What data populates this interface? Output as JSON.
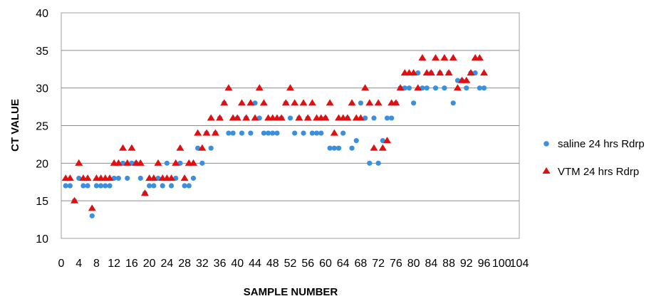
{
  "chart_data": {
    "type": "scatter",
    "title": "",
    "xlabel": "SAMPLE NUMBER",
    "ylabel": "CT VALUE",
    "xlim": [
      0,
      104
    ],
    "ylim": [
      10,
      40
    ],
    "xticks": [
      0,
      4,
      8,
      12,
      16,
      20,
      24,
      28,
      32,
      36,
      40,
      44,
      48,
      52,
      56,
      60,
      64,
      68,
      72,
      76,
      80,
      84,
      88,
      92,
      96,
      100,
      104
    ],
    "yticks": [
      10,
      15,
      20,
      25,
      30,
      35,
      40
    ],
    "grid": "horizontal",
    "legend_position": "right",
    "series": [
      {
        "name": "saline 24 hrs Rdrp",
        "marker": "circle",
        "color": "#3a8fde",
        "x": [
          1,
          2,
          3,
          4,
          5,
          6,
          7,
          8,
          9,
          10,
          11,
          12,
          13,
          14,
          15,
          16,
          17,
          18,
          19,
          20,
          21,
          22,
          23,
          24,
          25,
          26,
          27,
          28,
          29,
          30,
          31,
          32,
          33,
          34,
          35,
          36,
          37,
          38,
          39,
          40,
          41,
          42,
          43,
          44,
          45,
          46,
          47,
          48,
          49,
          50,
          51,
          52,
          53,
          54,
          55,
          56,
          57,
          58,
          59,
          60,
          61,
          62,
          63,
          64,
          65,
          66,
          67,
          68,
          69,
          70,
          71,
          72,
          73,
          74,
          75,
          76,
          77,
          78,
          79,
          80,
          81,
          82,
          83,
          84,
          85,
          86,
          87,
          88,
          89,
          90,
          91,
          92,
          93,
          94,
          95,
          96
        ],
        "y": [
          17,
          17,
          15,
          18,
          17,
          17,
          13,
          17,
          17,
          17,
          17,
          18,
          18,
          20,
          18,
          20,
          20,
          18,
          16,
          17,
          17,
          18,
          17,
          20,
          17,
          18,
          20,
          17,
          17,
          18,
          22,
          20,
          24,
          22,
          24,
          26,
          28,
          24,
          24,
          26,
          24,
          26,
          24,
          28,
          26,
          24,
          24,
          24,
          24,
          26,
          28,
          26,
          24,
          26,
          24,
          26,
          24,
          24,
          24,
          26,
          22,
          22,
          22,
          24,
          26,
          22,
          23,
          28,
          26,
          20,
          26,
          20,
          23,
          26,
          26,
          28,
          30,
          30,
          30,
          28,
          32,
          30,
          30,
          32,
          30,
          32,
          30,
          32,
          28,
          31,
          31,
          30,
          32,
          32,
          30,
          30
        ]
      },
      {
        "name": "VTM 24 hrs Rdrp",
        "marker": "triangle",
        "color": "#e01010",
        "x": [
          1,
          2,
          3,
          4,
          5,
          6,
          7,
          8,
          9,
          10,
          11,
          12,
          13,
          14,
          15,
          16,
          17,
          18,
          19,
          20,
          21,
          22,
          23,
          24,
          25,
          26,
          27,
          28,
          29,
          30,
          31,
          32,
          33,
          34,
          35,
          36,
          37,
          38,
          39,
          40,
          41,
          42,
          43,
          44,
          45,
          46,
          47,
          48,
          49,
          50,
          51,
          52,
          53,
          54,
          55,
          56,
          57,
          58,
          59,
          60,
          61,
          62,
          63,
          64,
          65,
          66,
          67,
          68,
          69,
          70,
          71,
          72,
          73,
          74,
          75,
          76,
          77,
          78,
          79,
          80,
          81,
          82,
          83,
          84,
          85,
          86,
          87,
          88,
          89,
          90,
          91,
          92,
          93,
          94,
          95,
          96
        ],
        "y": [
          18,
          18,
          15,
          20,
          18,
          18,
          14,
          18,
          18,
          18,
          18,
          20,
          20,
          22,
          20,
          22,
          20,
          20,
          16,
          18,
          18,
          20,
          18,
          18,
          18,
          20,
          22,
          18,
          20,
          20,
          24,
          22,
          24,
          26,
          24,
          26,
          28,
          30,
          26,
          26,
          28,
          26,
          28,
          26,
          30,
          28,
          26,
          26,
          26,
          26,
          28,
          30,
          28,
          26,
          28,
          26,
          28,
          26,
          26,
          26,
          28,
          24,
          26,
          26,
          26,
          28,
          26,
          26,
          30,
          28,
          22,
          28,
          22,
          23,
          28,
          28,
          30,
          32,
          32,
          32,
          30,
          34,
          32,
          32,
          34,
          32,
          34,
          32,
          34,
          30,
          31,
          31,
          32,
          34,
          34,
          32
        ]
      }
    ]
  }
}
